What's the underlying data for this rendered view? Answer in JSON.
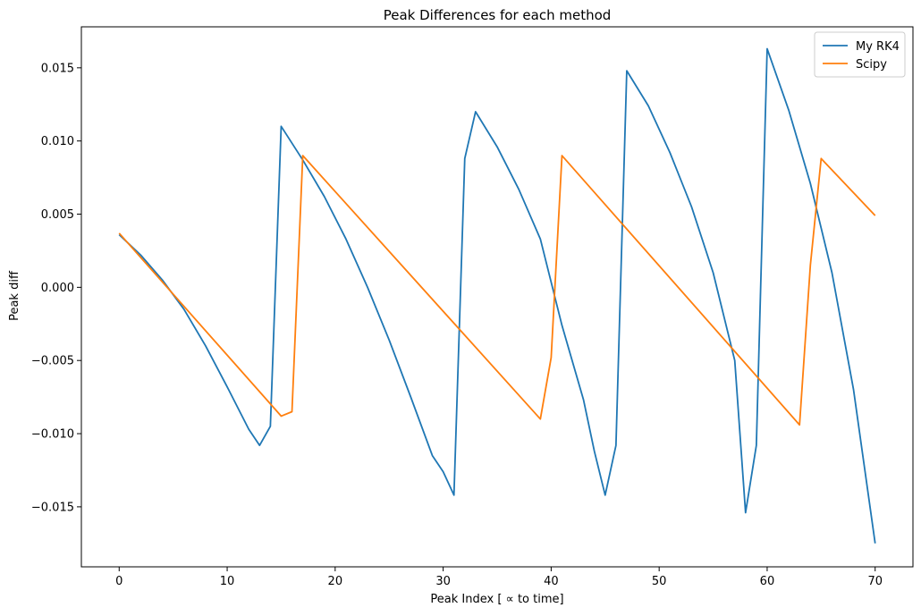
{
  "chart_data": {
    "type": "line",
    "title": "Peak Differences for each method",
    "xlabel": "Peak Index [ ∝  to time]",
    "ylabel": "Peak diff",
    "xlim": [
      -3.5,
      73.5
    ],
    "ylim": [
      -0.0191,
      0.0178
    ],
    "xticks": [
      0,
      10,
      20,
      30,
      40,
      50,
      60,
      70
    ],
    "xtick_labels": [
      "0",
      "10",
      "20",
      "30",
      "40",
      "50",
      "60",
      "70"
    ],
    "yticks": [
      -0.015,
      -0.01,
      -0.005,
      0.0,
      0.005,
      0.01,
      0.015
    ],
    "ytick_labels": [
      "−0.015",
      "−0.010",
      "−0.005",
      "0.000",
      "0.005",
      "0.010",
      "0.015"
    ],
    "grid": false,
    "legend": "top-right",
    "series": [
      {
        "name": "My RK4",
        "color": "#1f77b4",
        "x": [
          0,
          2,
          4,
          6,
          8,
          10,
          12,
          13,
          14,
          15,
          17,
          19,
          21,
          23,
          25,
          27,
          29,
          30,
          31,
          32,
          33,
          35,
          37,
          39,
          41,
          43,
          44,
          45,
          46,
          47,
          49,
          51,
          53,
          55,
          57,
          58,
          59,
          60,
          62,
          64,
          66,
          68,
          70
        ],
        "y": [
          0.0036,
          0.0022,
          0.0005,
          -0.0015,
          -0.004,
          -0.0068,
          -0.0097,
          -0.0108,
          -0.0095,
          0.011,
          0.0087,
          0.0062,
          0.0033,
          0.0,
          -0.0036,
          -0.0075,
          -0.0115,
          -0.0126,
          -0.0142,
          0.0088,
          0.012,
          0.0096,
          0.0067,
          0.0033,
          -0.0026,
          -0.0077,
          -0.0112,
          -0.0142,
          -0.0108,
          0.0148,
          0.0124,
          0.0092,
          0.0055,
          0.001,
          -0.005,
          -0.0154,
          -0.0108,
          0.0163,
          0.0121,
          0.0071,
          0.001,
          -0.007,
          -0.0175
        ]
      },
      {
        "name": "Scipy",
        "color": "#ff7f0e",
        "x": [
          0,
          15,
          16,
          17,
          39,
          40,
          41,
          63,
          64,
          65,
          70
        ],
        "y": [
          0.0037,
          -0.0088,
          -0.0085,
          0.009,
          -0.009,
          -0.0048,
          0.009,
          -0.0094,
          0.0015,
          0.0088,
          0.0049
        ]
      }
    ]
  }
}
